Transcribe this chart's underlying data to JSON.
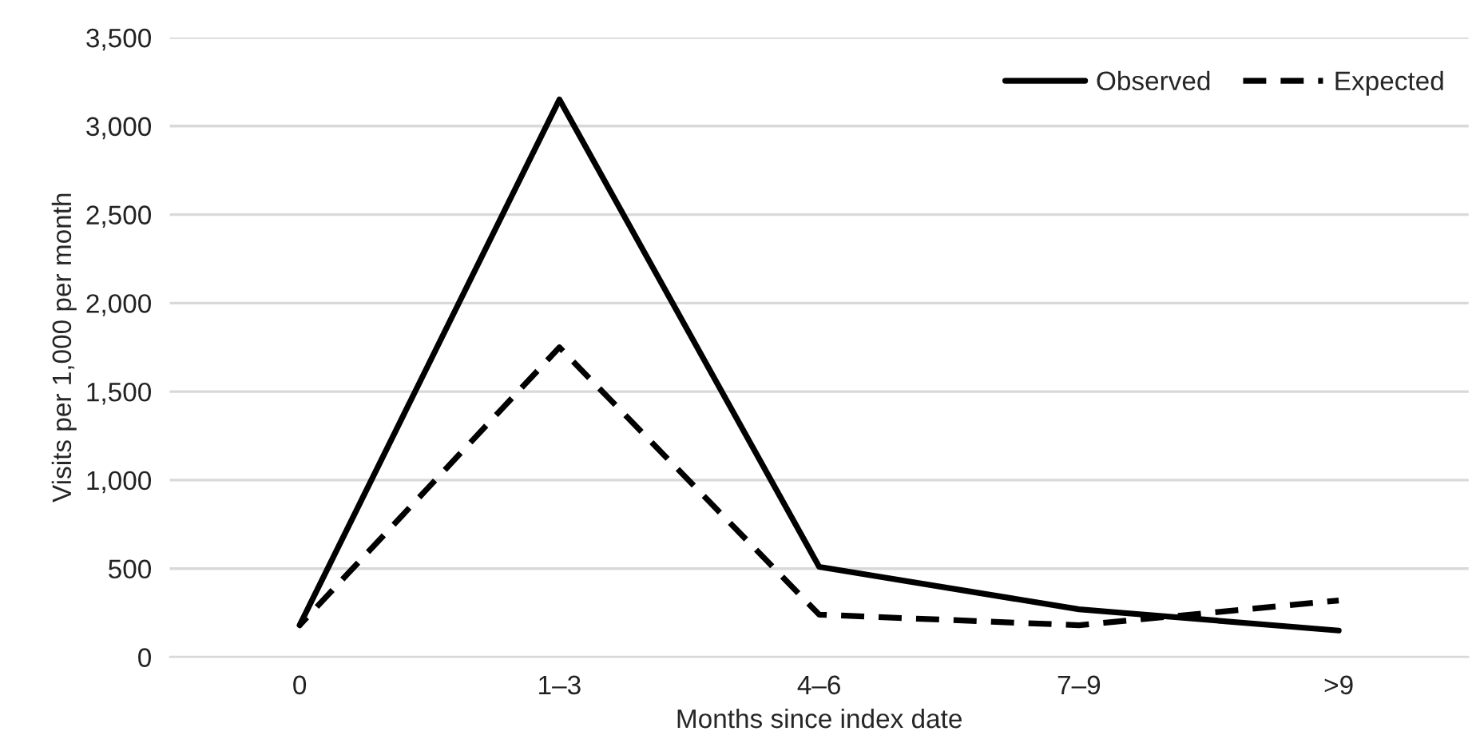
{
  "chart_data": {
    "type": "line",
    "xlabel": "Months since index date",
    "ylabel": "Visits per 1,000 per month",
    "categories": [
      "0",
      "1–3",
      "4–6",
      "7–9",
      ">9"
    ],
    "series": [
      {
        "name": "Observed",
        "color": "#000000",
        "line_style": "solid",
        "values": [
          180,
          3150,
          510,
          270,
          150
        ]
      },
      {
        "name": "Expected",
        "color": "#000000",
        "line_style": "dashed",
        "values": [
          180,
          1750,
          240,
          180,
          320
        ]
      }
    ],
    "ylim": [
      0,
      3500
    ],
    "yticks": [
      {
        "value": 0,
        "label": "0"
      },
      {
        "value": 500,
        "label": "500"
      },
      {
        "value": 1000,
        "label": "1,000"
      },
      {
        "value": 1500,
        "label": "1,500"
      },
      {
        "value": 2000,
        "label": "2,000"
      },
      {
        "value": 2500,
        "label": "2,500"
      },
      {
        "value": 3000,
        "label": "3,000"
      },
      {
        "value": 3500,
        "label": "3,500"
      }
    ],
    "grid": "y",
    "legend": "top right",
    "marker": "none"
  }
}
